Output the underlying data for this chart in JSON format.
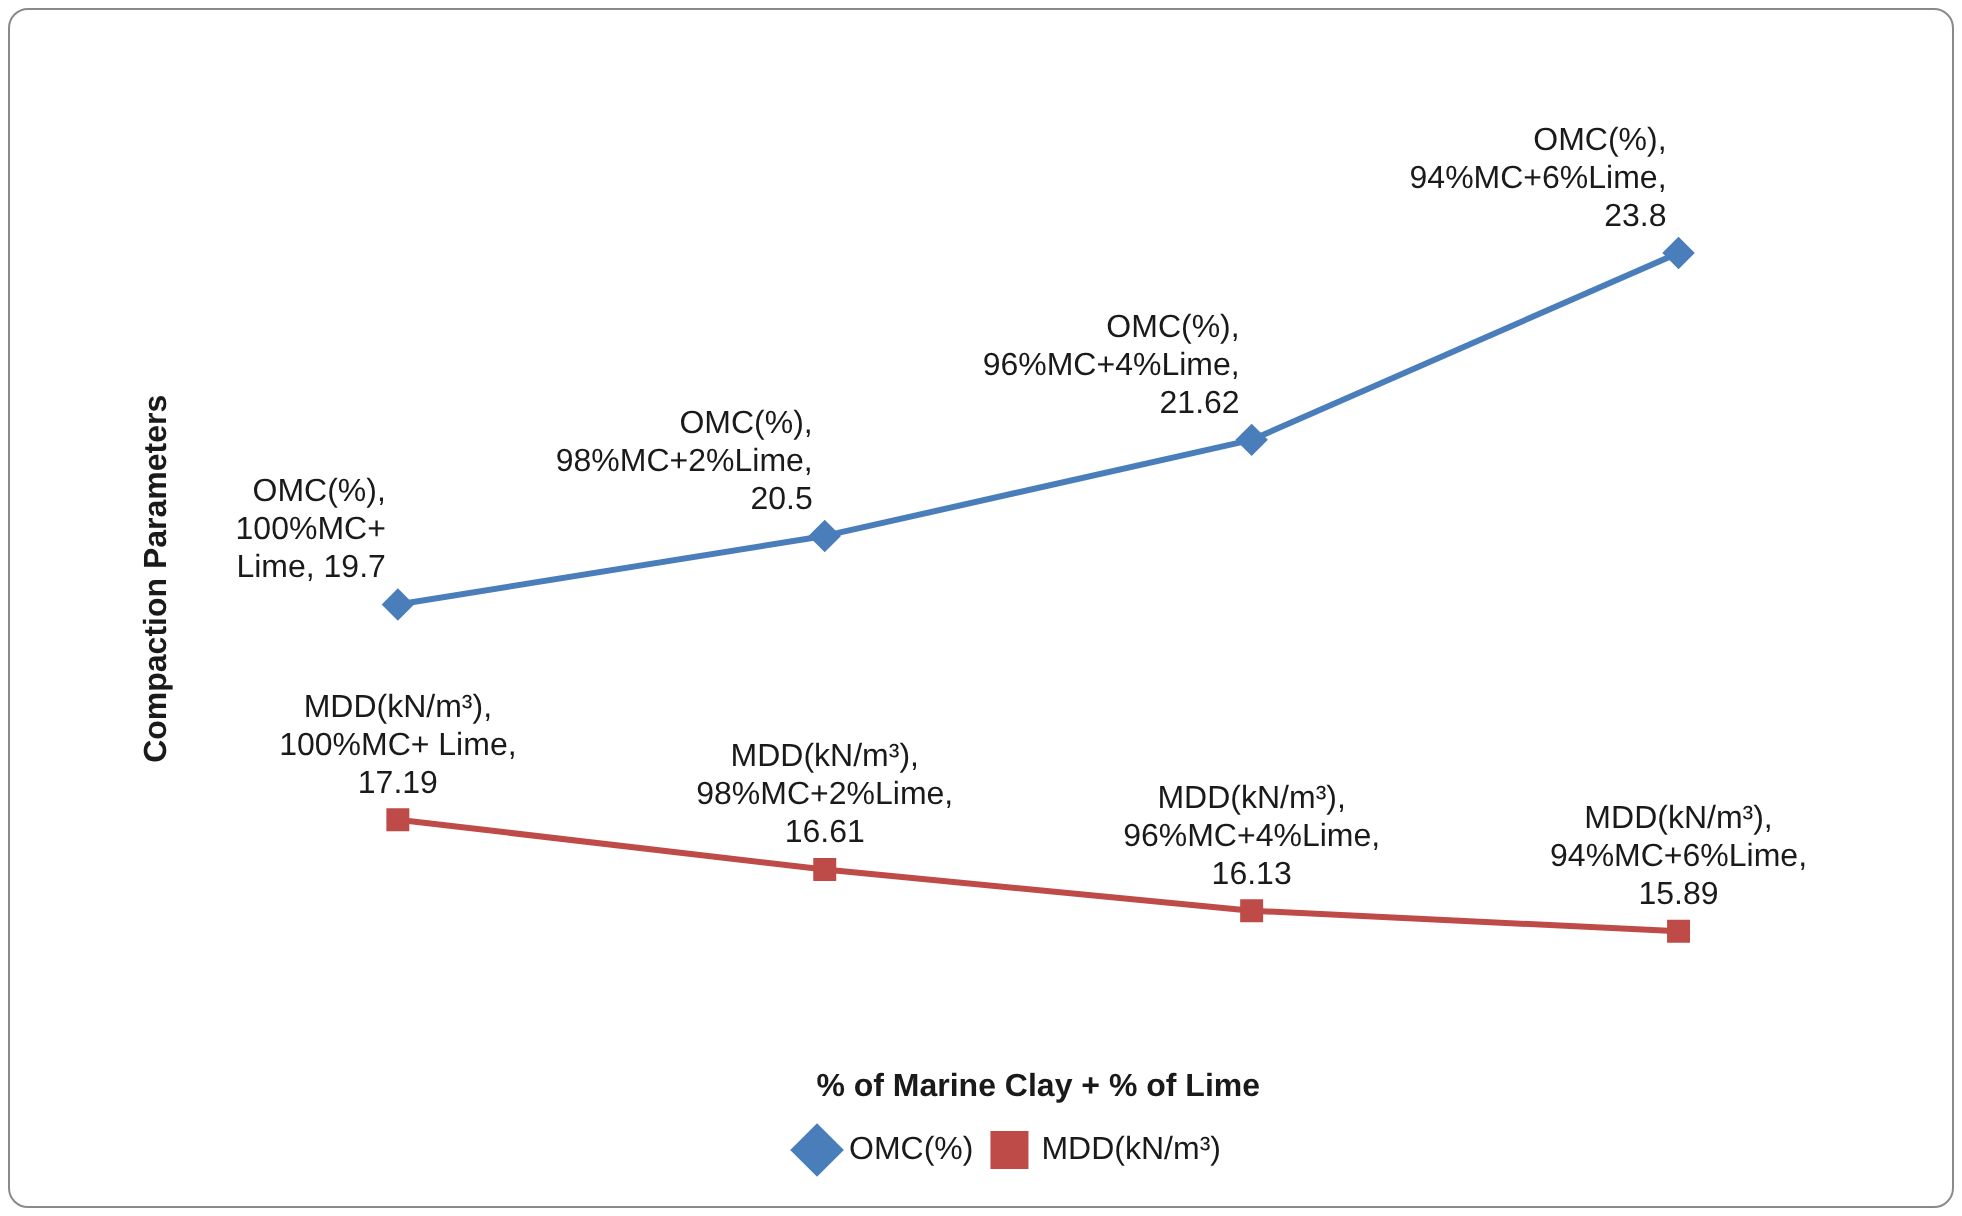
{
  "chart_data": {
    "type": "line",
    "xlabel": "% of Marine Clay + % of Lime",
    "ylabel": "Compaction Parameters",
    "categories": [
      null,
      null,
      null,
      null
    ],
    "series": [
      {
        "name": "OMC(%)",
        "color": "#4a7ebb",
        "marker": "diamond",
        "values": [
          19.7,
          20.5,
          21.62,
          23.8
        ],
        "value_labels": [
          "OMC(%), 100%MC+ Lime, 19.7",
          "OMC(%), 98%MC+2%Lime, 20.5",
          "OMC(%), 96%MC+4%Lime, 21.62",
          "OMC(%), 94%MC+6%Lime, 23.8"
        ]
      },
      {
        "name": "MDD(kN/m³)",
        "color": "#be4b48",
        "marker": "square",
        "values": [
          17.19,
          16.61,
          16.13,
          15.89
        ],
        "value_labels": [
          "MDD(kN/m³), 100%MC+ Lime, 17.19",
          "MDD(kN/m³), 98%MC+2%Lime, 16.61",
          "MDD(kN/m³), 96%MC+4%Lime, 16.13",
          "MDD(kN/m³), 94%MC+6%Lime, 15.89"
        ]
      }
    ],
    "legend": "bottom",
    "grid": false,
    "tick_labels": false
  }
}
